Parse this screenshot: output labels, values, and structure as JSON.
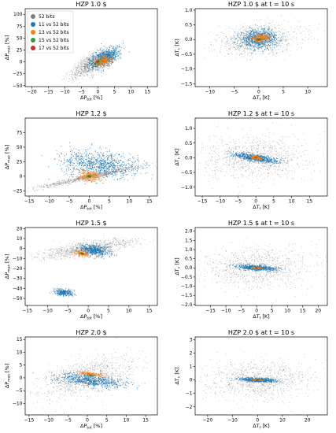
{
  "colors": {
    "bits52": "#7f7f7f",
    "bits11": "#1f77b4",
    "bits13": "#ff7f0e",
    "bits15": "#2ca02c",
    "bits17": "#d62728"
  },
  "legend": {
    "placement": "upper-left of first panel",
    "entries": [
      {
        "label": "52 bits",
        "color": "#7f7f7f"
      },
      {
        "label": "11 vs 52 bits",
        "color": "#1f77b4"
      },
      {
        "label": "13 vs 52 bits",
        "color": "#ff7f0e"
      },
      {
        "label": "15 vs 52 bits",
        "color": "#2ca02c"
      },
      {
        "label": "17 vs 52 bits",
        "color": "#d62728"
      }
    ]
  },
  "chart_data": [
    {
      "type": "scatter",
      "title": "HZP 1.0 $",
      "xlabel": "ΔP_tot [%]",
      "ylabel": "ΔP_max [%]",
      "xlim": [
        -22,
        18
      ],
      "ylim": [
        -52,
        112
      ],
      "xticks": [
        -20,
        -15,
        -10,
        -5,
        0,
        5,
        10,
        15
      ],
      "yticks": [
        -50,
        -25,
        0,
        25,
        50,
        75,
        100
      ],
      "xtick_labels": [
        "−20",
        "−15",
        "−10",
        "−5",
        "0",
        "5",
        "10",
        "15"
      ],
      "ytick_labels": [
        "−50",
        "−25",
        "0",
        "25",
        "50",
        "75",
        "100"
      ],
      "series": [
        {
          "name": "52 bits",
          "color": "#7f7f7f",
          "clusters": [
            {
              "cx": -3,
              "cy": -7,
              "ax": 9,
              "ay": 15,
              "theta": 0.95,
              "n": 700
            }
          ]
        },
        {
          "name": "11 vs 52 bits",
          "color": "#1f77b4",
          "clusters": [
            {
              "cx": 2,
              "cy": 8,
              "ax": 7,
              "ay": 14,
              "theta": 0.92,
              "n": 900,
              "curve": 0.9
            }
          ]
        },
        {
          "name": "13 vs 52 bits",
          "color": "#ff7f0e",
          "clusters": [
            {
              "cx": 1.5,
              "cy": 2,
              "ax": 3.5,
              "ay": 10,
              "theta": 0.95,
              "n": 250
            }
          ]
        },
        {
          "name": "15 vs 52 bits",
          "color": "#2ca02c",
          "clusters": [
            {
              "cx": 0,
              "cy": 0,
              "ax": 1.2,
              "ay": 3,
              "theta": 0.95,
              "n": 60
            }
          ]
        },
        {
          "name": "17 vs 52 bits",
          "color": "#d62728",
          "clusters": [
            {
              "cx": 0,
              "cy": 0,
              "ax": 0.4,
              "ay": 1,
              "theta": 0.95,
              "n": 20
            }
          ]
        }
      ]
    },
    {
      "type": "scatter",
      "title": "HZP 1.0 $ at t = 10 s",
      "xlabel": "ΔT_f [K]",
      "ylabel": "ΔT_c [K]",
      "xlim": [
        -13,
        14
      ],
      "ylim": [
        -1.6,
        1.05
      ],
      "xticks": [
        -10,
        -5,
        0,
        5,
        10
      ],
      "yticks": [
        -1.5,
        -1.0,
        -0.5,
        0.0,
        0.5,
        1.0
      ],
      "xtick_labels": [
        "−10",
        "−5",
        "0",
        "5",
        "10"
      ],
      "ytick_labels": [
        "−1.5",
        "−1.0",
        "−0.5",
        "0.0",
        "0.5",
        "1.0"
      ],
      "series": [
        {
          "name": "52 bits",
          "color": "#7f7f7f",
          "clusters": [
            {
              "cx": 0,
              "cy": 0,
              "ax": 10,
              "ay": 0.55,
              "theta": 0.18,
              "n": 900
            }
          ]
        },
        {
          "name": "11 vs 52 bits",
          "color": "#1f77b4",
          "clusters": [
            {
              "cx": 0,
              "cy": 0.02,
              "ax": 4.5,
              "ay": 0.35,
              "theta": 0.3,
              "n": 800
            }
          ]
        },
        {
          "name": "13 vs 52 bits",
          "color": "#ff7f0e",
          "clusters": [
            {
              "cx": 0.5,
              "cy": 0.05,
              "ax": 2,
              "ay": 0.12,
              "theta": 0.3,
              "n": 250
            }
          ]
        },
        {
          "name": "15 vs 52 bits",
          "color": "#2ca02c",
          "clusters": [
            {
              "cx": 0,
              "cy": 0,
              "ax": 0.5,
              "ay": 0.03,
              "theta": 0.3,
              "n": 50
            }
          ]
        },
        {
          "name": "17 vs 52 bits",
          "color": "#d62728",
          "clusters": [
            {
              "cx": 0,
              "cy": 0,
              "ax": 0.2,
              "ay": 0.015,
              "theta": 0.3,
              "n": 20
            }
          ]
        }
      ]
    },
    {
      "type": "scatter",
      "title": "HZP 1.2 $",
      "xlabel": "ΔP_tot [%]",
      "ylabel": "ΔP_max [%]",
      "xlim": [
        -16,
        17
      ],
      "ylim": [
        -34,
        100
      ],
      "xticks": [
        -15,
        -10,
        -5,
        0,
        5,
        10,
        15
      ],
      "yticks": [
        -25,
        0,
        25,
        50,
        75
      ],
      "xtick_labels": [
        "−15",
        "−10",
        "−5",
        "0",
        "5",
        "10",
        "15"
      ],
      "ytick_labels": [
        "−25",
        "0",
        "25",
        "50",
        "75"
      ],
      "series": [
        {
          "name": "52 bits",
          "color": "#7f7f7f",
          "clusters": [
            {
              "cx": 0,
              "cy": -1,
              "ax": 16,
              "ay": 5,
              "theta": 0.35,
              "n": 900
            }
          ]
        },
        {
          "name": "11 vs 52 bits",
          "color": "#1f77b4",
          "clusters": [
            {
              "cx": 2.5,
              "cy": 20,
              "ax": 6,
              "ay": 45,
              "theta": 1.35,
              "n": 900
            }
          ]
        },
        {
          "name": "13 vs 52 bits",
          "color": "#ff7f0e",
          "clusters": [
            {
              "cx": 0.3,
              "cy": 0,
              "ax": 2.5,
              "ay": 14,
              "theta": 1.2,
              "n": 250
            }
          ]
        },
        {
          "name": "15 vs 52 bits",
          "color": "#2ca02c",
          "clusters": [
            {
              "cx": 0,
              "cy": 0,
              "ax": 0.6,
              "ay": 3,
              "theta": 1.2,
              "n": 50
            }
          ]
        },
        {
          "name": "17 vs 52 bits",
          "color": "#d62728",
          "clusters": [
            {
              "cx": 0,
              "cy": 0,
              "ax": 0.2,
              "ay": 1,
              "theta": 1.2,
              "n": 20
            }
          ]
        }
      ]
    },
    {
      "type": "scatter",
      "title": "HZP 1.2 $ at t = 10 s",
      "xlabel": "ΔT_f [K]",
      "ylabel": "ΔT_c [K]",
      "xlim": [
        -17,
        20
      ],
      "ylim": [
        -1.3,
        1.35
      ],
      "xticks": [
        -15,
        -10,
        -5,
        0,
        5,
        10,
        15
      ],
      "yticks": [
        -1.0,
        -0.5,
        0.0,
        0.5,
        1.0
      ],
      "xtick_labels": [
        "−15",
        "−10",
        "−5",
        "0",
        "5",
        "10",
        "15"
      ],
      "ytick_labels": [
        "−1.0",
        "−0.5",
        "0.0",
        "0.5",
        "1.0"
      ],
      "series": [
        {
          "name": "52 bits",
          "color": "#7f7f7f",
          "clusters": [
            {
              "cx": 0,
              "cy": 0,
              "ax": 16,
              "ay": 0.8,
              "theta": 0.12,
              "n": 1000
            }
          ]
        },
        {
          "name": "11 vs 52 bits",
          "color": "#1f77b4",
          "clusters": [
            {
              "cx": 0,
              "cy": 0,
              "ax": 1.8,
              "ay": 0.5,
              "theta": 1.3,
              "n": 700
            }
          ]
        },
        {
          "name": "13 vs 52 bits",
          "color": "#ff7f0e",
          "clusters": [
            {
              "cx": 0,
              "cy": 0,
              "ax": 0.8,
              "ay": 0.12,
              "theta": 1.3,
              "n": 200
            }
          ]
        },
        {
          "name": "15 vs 52 bits",
          "color": "#2ca02c",
          "clusters": [
            {
              "cx": 0,
              "cy": 0,
              "ax": 0.2,
              "ay": 0.03,
              "theta": 1.3,
              "n": 40
            }
          ]
        },
        {
          "name": "17 vs 52 bits",
          "color": "#d62728",
          "clusters": [
            {
              "cx": 0,
              "cy": 0,
              "ax": 0.1,
              "ay": 0.01,
              "theta": 1.3,
              "n": 15
            }
          ]
        }
      ]
    },
    {
      "type": "scatter",
      "title": "HZP 1.5 $",
      "xlabel": "ΔP_tot [%]",
      "ylabel": "ΔP_max [%]",
      "xlim": [
        -15.5,
        17
      ],
      "ylim": [
        -57,
        21
      ],
      "xticks": [
        -15,
        -10,
        -5,
        0,
        5,
        10,
        15
      ],
      "yticks": [
        -50,
        -40,
        -30,
        -20,
        -10,
        0,
        10,
        20
      ],
      "xtick_labels": [
        "−15",
        "−10",
        "−5",
        "0",
        "5",
        "10",
        "15"
      ],
      "ytick_labels": [
        "−50",
        "−40",
        "−30",
        "−20",
        "−10",
        "0",
        "10",
        "20"
      ],
      "series": [
        {
          "name": "52 bits",
          "color": "#7f7f7f",
          "clusters": [
            {
              "cx": 0,
              "cy": 0,
              "ax": 14,
              "ay": 7,
              "theta": 0.25,
              "n": 1000
            }
          ]
        },
        {
          "name": "11 vs 52 bits",
          "color": "#1f77b4",
          "clusters": [
            {
              "cx": 1.5,
              "cy": -2,
              "ax": 2.2,
              "ay": 10,
              "theta": 1.25,
              "n": 500
            },
            {
              "cx": -6,
              "cy": -44,
              "ax": 1.5,
              "ay": 6,
              "theta": 1.3,
              "n": 300
            }
          ]
        },
        {
          "name": "13 vs 52 bits",
          "color": "#ff7f0e",
          "clusters": [
            {
              "cx": -1.5,
              "cy": -5,
              "ax": 1,
              "ay": 5,
              "theta": 1.1,
              "n": 150
            }
          ]
        },
        {
          "name": "15 vs 52 bits",
          "color": "#2ca02c",
          "clusters": [
            {
              "cx": -1.5,
              "cy": -5,
              "ax": 0.3,
              "ay": 1.5,
              "theta": 1.1,
              "n": 40
            }
          ]
        },
        {
          "name": "17 vs 52 bits",
          "color": "#d62728",
          "clusters": [
            {
              "cx": -1.5,
              "cy": -5,
              "ax": 0.1,
              "ay": 0.5,
              "theta": 1.1,
              "n": 15
            }
          ]
        }
      ]
    },
    {
      "type": "scatter",
      "title": "HZP 1.5 $ at t = 10 s",
      "xlabel": "ΔT_f [K]",
      "ylabel": "ΔT_c [K]",
      "xlim": [
        -20,
        23
      ],
      "ylim": [
        -2.05,
        2.2
      ],
      "xticks": [
        -15,
        -10,
        -5,
        0,
        5,
        10,
        15,
        20
      ],
      "yticks": [
        -2.0,
        -1.5,
        -1.0,
        -0.5,
        0.0,
        0.5,
        1.0,
        1.5,
        2.0
      ],
      "xtick_labels": [
        "−15",
        "−10",
        "−5",
        "0",
        "5",
        "10",
        "15",
        "20"
      ],
      "ytick_labels": [
        "−2.0",
        "−1.5",
        "−1.0",
        "−0.5",
        "0.0",
        "0.5",
        "1.0",
        "1.5",
        "2.0"
      ],
      "series": [
        {
          "name": "52 bits",
          "color": "#7f7f7f",
          "clusters": [
            {
              "cx": 0,
              "cy": 0,
              "ax": 20,
              "ay": 1.2,
              "theta": 0.12,
              "n": 1000
            }
          ]
        },
        {
          "name": "11 vs 52 bits",
          "color": "#1f77b4",
          "clusters": [
            {
              "cx": 0,
              "cy": 0,
              "ax": 1.6,
              "ay": 0.7,
              "theta": 1.45,
              "n": 600
            }
          ]
        },
        {
          "name": "13 vs 52 bits",
          "color": "#ff7f0e",
          "clusters": [
            {
              "cx": 0,
              "cy": 0,
              "ax": 0.5,
              "ay": 0.15,
              "theta": 1.45,
              "n": 120
            }
          ]
        },
        {
          "name": "15 vs 52 bits",
          "color": "#2ca02c",
          "clusters": [
            {
              "cx": 0,
              "cy": 0,
              "ax": 0.15,
              "ay": 0.04,
              "theta": 1.45,
              "n": 30
            }
          ]
        },
        {
          "name": "17 vs 52 bits",
          "color": "#d62728",
          "clusters": [
            {
              "cx": 0,
              "cy": 0,
              "ax": 0.05,
              "ay": 0.015,
              "theta": 1.45,
              "n": 10
            }
          ]
        }
      ]
    },
    {
      "type": "scatter",
      "title": "HZP 2.0 $",
      "xlabel": "ΔP_tot [%]",
      "ylabel": "ΔP_max [%]",
      "xlim": [
        -16,
        18
      ],
      "ylim": [
        -14.5,
        16
      ],
      "xticks": [
        -15,
        -10,
        -5,
        0,
        5,
        10,
        15
      ],
      "yticks": [
        -10,
        -5,
        0,
        5,
        10,
        15
      ],
      "xtick_labels": [
        "−15",
        "−10",
        "−5",
        "0",
        "5",
        "10",
        "15"
      ],
      "ytick_labels": [
        "−10",
        "−5",
        "0",
        "5",
        "10",
        "15"
      ],
      "series": [
        {
          "name": "52 bits",
          "color": "#7f7f7f",
          "clusters": [
            {
              "cx": 0,
              "cy": 0,
              "ax": 16,
              "ay": 7,
              "theta": 0.55,
              "n": 1000
            }
          ]
        },
        {
          "name": "11 vs 52 bits",
          "color": "#1f77b4",
          "clusters": [
            {
              "cx": 1,
              "cy": -1,
              "ax": 3,
              "ay": 9,
              "theta": 1.35,
              "n": 700
            }
          ]
        },
        {
          "name": "13 vs 52 bits",
          "color": "#ff7f0e",
          "clusters": [
            {
              "cx": 1,
              "cy": 1.5,
              "ax": 0.8,
              "ay": 3.5,
              "theta": 1.3,
              "n": 150
            }
          ]
        },
        {
          "name": "15 vs 52 bits",
          "color": "#2ca02c",
          "clusters": [
            {
              "cx": 0.8,
              "cy": 1,
              "ax": 0.25,
              "ay": 1,
              "theta": 1.3,
              "n": 40
            }
          ]
        },
        {
          "name": "17 vs 52 bits",
          "color": "#d62728",
          "clusters": [
            {
              "cx": 0.8,
              "cy": 1,
              "ax": 0.08,
              "ay": 0.3,
              "theta": 1.3,
              "n": 15
            }
          ]
        }
      ]
    },
    {
      "type": "scatter",
      "title": "HZP 2.0 $ at t = 10 s",
      "xlabel": "ΔT_f [K]",
      "ylabel": "ΔT_c [K]",
      "xlim": [
        -25,
        28
      ],
      "ylim": [
        -2.6,
        3.2
      ],
      "xticks": [
        -20,
        -10,
        0,
        10,
        20
      ],
      "yticks": [
        -2,
        -1,
        0,
        1,
        2,
        3
      ],
      "xtick_labels": [
        "−20",
        "−10",
        "0",
        "10",
        "20"
      ],
      "ytick_labels": [
        "−2",
        "−1",
        "0",
        "1",
        "2",
        "3"
      ],
      "series": [
        {
          "name": "52 bits",
          "color": "#7f7f7f",
          "clusters": [
            {
              "cx": 0,
              "cy": 0,
              "ax": 24,
              "ay": 1.5,
              "theta": 0.1,
              "n": 1000
            }
          ]
        },
        {
          "name": "11 vs 52 bits",
          "color": "#1f77b4",
          "clusters": [
            {
              "cx": 0,
              "cy": 0,
              "ax": 1.5,
              "ay": 0.9,
              "theta": 1.5,
              "n": 600
            }
          ]
        },
        {
          "name": "13 vs 52 bits",
          "color": "#ff7f0e",
          "clusters": [
            {
              "cx": 0,
              "cy": 0,
              "ax": 0.4,
              "ay": 0.25,
              "theta": 1.5,
              "n": 100
            }
          ]
        },
        {
          "name": "15 vs 52 bits",
          "color": "#2ca02c",
          "clusters": [
            {
              "cx": 0,
              "cy": 0,
              "ax": 0.15,
              "ay": 0.06,
              "theta": 1.5,
              "n": 25
            }
          ]
        },
        {
          "name": "17 vs 52 bits",
          "color": "#d62728",
          "clusters": [
            {
              "cx": 0,
              "cy": 0,
              "ax": 0.05,
              "ay": 0.02,
              "theta": 1.5,
              "n": 10
            }
          ]
        }
      ]
    }
  ]
}
